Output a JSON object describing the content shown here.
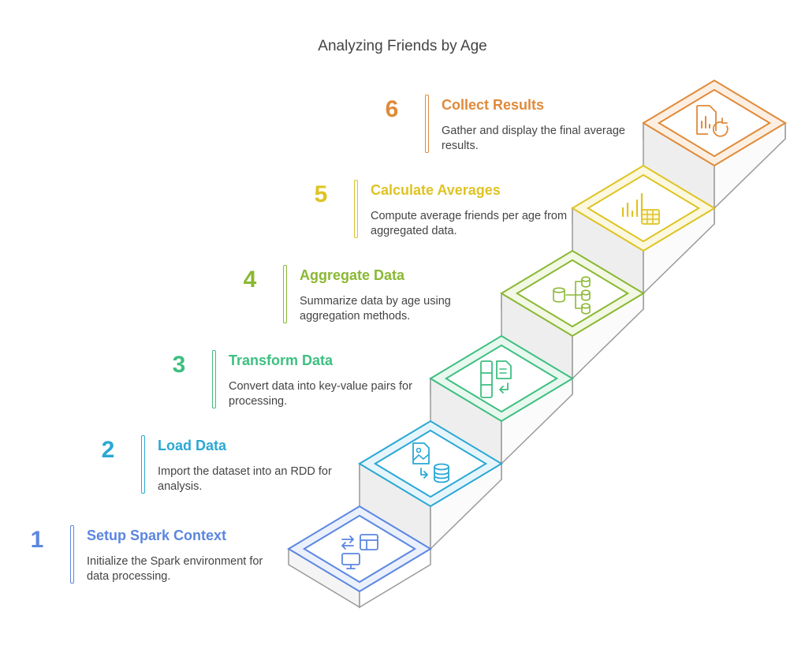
{
  "title": "Analyzing Friends by Age",
  "steps": [
    {
      "number": "1",
      "title": "Setup Spark Context",
      "description": "Initialize the Spark environment for data processing.",
      "color": "#5b86e0",
      "fill": "#eaf0fc",
      "icon": "transfer-table-monitor-icon"
    },
    {
      "number": "2",
      "title": "Load Data",
      "description": "Import the dataset into an RDD for analysis.",
      "color": "#2aa8d4",
      "fill": "#e6f5fb",
      "icon": "image-to-database-icon"
    },
    {
      "number": "3",
      "title": "Transform Data",
      "description": "Convert data into key-value pairs for processing.",
      "color": "#3dbf80",
      "fill": "#e8f8ef",
      "icon": "columns-document-icon"
    },
    {
      "number": "4",
      "title": "Aggregate Data",
      "description": "Summarize data by age using aggregation methods.",
      "color": "#8ab833",
      "fill": "#f2f8e4",
      "icon": "database-merge-icon"
    },
    {
      "number": "5",
      "title": "Calculate Averages",
      "description": "Compute average friends per age from aggregated data.",
      "color": "#dfc323",
      "fill": "#fbf8df",
      "icon": "chart-table-icon"
    },
    {
      "number": "6",
      "title": "Collect Results",
      "description": "Gather and display the final average results.",
      "color": "#e08a3a",
      "fill": "#fcefe2",
      "icon": "report-refresh-icon"
    }
  ]
}
